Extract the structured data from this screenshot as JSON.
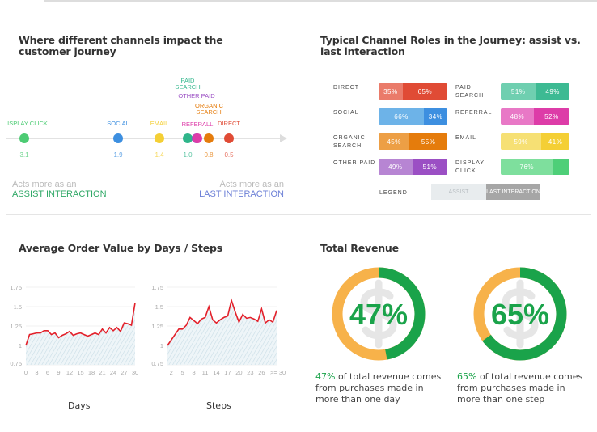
{
  "journey": {
    "title": "Where different channels impact the customer journey",
    "channels": [
      {
        "label": "ISPLAY CLICK",
        "value": "3.1",
        "color": "#4ccb73"
      },
      {
        "label": "SOCIAL",
        "value": "1.9",
        "color": "#3d8fe0"
      },
      {
        "label": "EMAIL",
        "value": "1.4",
        "color": "#f4cf35"
      },
      {
        "label": "PAID SEARCH",
        "value": "1.0",
        "color": "#2fb58a"
      },
      {
        "label": "OTHER PAID",
        "value": "",
        "color": "#9b4fc4"
      },
      {
        "label": "REFERALL",
        "value": "",
        "color": "#dd3ca8"
      },
      {
        "label": "ORGANIC SEARCH",
        "value": "0.8",
        "color": "#e57c0c"
      },
      {
        "label": "DIRECT",
        "value": "0.5",
        "color": "#e04b35"
      }
    ],
    "assist_pre": "Acts more as an",
    "assist_main": "ASSIST INTERACTION",
    "last_pre": "Acts more as an",
    "last_main": "LAST INTERACTION",
    "assist_color": "#2fa866",
    "last_color": "#6b7fd6"
  },
  "roles": {
    "title": "Typical Channel Roles in the Journey: assist vs. last interaction",
    "rows": [
      {
        "label": "DIRECT",
        "assist": 35,
        "last": 65,
        "assist_text": "35%",
        "last_text": "65%",
        "c1": "#ea7b6a",
        "c2": "#e04b35"
      },
      {
        "label": "PAID SEARCH",
        "assist": 51,
        "last": 49,
        "assist_text": "51%",
        "last_text": "49%",
        "c1": "#6fcfb0",
        "c2": "#3dba93"
      },
      {
        "label": "SOCIAL",
        "assist": 66,
        "last": 34,
        "assist_text": "66%",
        "last_text": "34%",
        "c1": "#6db3e8",
        "c2": "#3d8fe0"
      },
      {
        "label": "REFERRAL",
        "assist": 48,
        "last": 52,
        "assist_text": "48%",
        "last_text": "52%",
        "c1": "#e878c6",
        "c2": "#dd3ca8"
      },
      {
        "label": "ORGANIC SEARCH",
        "assist": 45,
        "last": 55,
        "assist_text": "45%",
        "last_text": "55%",
        "c1": "#ed9f45",
        "c2": "#e57c0c"
      },
      {
        "label": "EMAIL",
        "assist": 59,
        "last": 41,
        "assist_text": "59%",
        "last_text": "41%",
        "c1": "#f6e074",
        "c2": "#f4cf35"
      },
      {
        "label": "OTHER PAID",
        "assist": 49,
        "last": 51,
        "assist_text": "49%",
        "last_text": "51%",
        "c1": "#b785d3",
        "c2": "#9b4fc4"
      },
      {
        "label": "DISPLAY CLICK",
        "assist": 76,
        "last": 24,
        "assist_text": "76%",
        "last_text": "",
        "c1": "#7edf9d",
        "c2": "#4ecf78"
      }
    ],
    "legend_label": "LEGEND",
    "legend_assist": "ASSIST",
    "legend_last": "LAST INTERACTION"
  },
  "aov": {
    "title": "Average Order Value by Days / Steps"
  },
  "chart_data": [
    {
      "type": "area",
      "xlabel": "Days",
      "ylim": [
        0.75,
        1.75
      ],
      "yticks": [
        "0.75",
        "1",
        "1.25",
        "1.5",
        "1.75"
      ],
      "xticks": [
        "0",
        "3",
        "6",
        "9",
        "12",
        "15",
        "18",
        "21",
        "24",
        "27",
        "30"
      ],
      "x": [
        0,
        1,
        2,
        3,
        4,
        5,
        6,
        7,
        8,
        9,
        10,
        11,
        12,
        13,
        14,
        15,
        16,
        17,
        18,
        19,
        20,
        21,
        22,
        23,
        24,
        25,
        26,
        27,
        28,
        29,
        30
      ],
      "values": [
        1.0,
        1.14,
        1.15,
        1.16,
        1.16,
        1.19,
        1.19,
        1.14,
        1.16,
        1.1,
        1.13,
        1.15,
        1.18,
        1.13,
        1.15,
        1.16,
        1.14,
        1.12,
        1.14,
        1.16,
        1.14,
        1.21,
        1.16,
        1.23,
        1.19,
        1.23,
        1.18,
        1.29,
        1.28,
        1.26,
        1.55
      ],
      "color": "#e3202a"
    },
    {
      "type": "area",
      "xlabel": "Steps",
      "ylim": [
        0.75,
        1.75
      ],
      "yticks": [
        "0.75",
        "1",
        "1.25",
        "1.5",
        "1.75"
      ],
      "xticks": [
        "2",
        "5",
        "8",
        "11",
        "14",
        "17",
        "20",
        "23",
        "26",
        ">= 30"
      ],
      "x": [
        1,
        2,
        3,
        4,
        5,
        6,
        7,
        8,
        9,
        10,
        11,
        12,
        13,
        14,
        15,
        16,
        17,
        18,
        19,
        20,
        21,
        22,
        23,
        24,
        25,
        26,
        27,
        28,
        29,
        30
      ],
      "values": [
        1.0,
        1.07,
        1.14,
        1.21,
        1.21,
        1.26,
        1.36,
        1.32,
        1.28,
        1.34,
        1.36,
        1.5,
        1.33,
        1.29,
        1.33,
        1.36,
        1.38,
        1.58,
        1.43,
        1.3,
        1.4,
        1.35,
        1.36,
        1.34,
        1.31,
        1.47,
        1.29,
        1.33,
        1.3,
        1.45
      ],
      "color": "#e3202a"
    },
    {
      "type": "pie",
      "title": "Total Revenue",
      "values": [
        47,
        53
      ],
      "center_text": "47%",
      "caption_pct": "47%",
      "caption": " of total revenue comes from purchases made in more than one day",
      "colors": [
        "#1aa34a",
        "#f7b24a"
      ]
    },
    {
      "type": "pie",
      "values": [
        65,
        35
      ],
      "center_text": "65%",
      "caption_pct": "65%",
      "caption": " of total revenue comes from purchases made in more than one step",
      "colors": [
        "#1aa34a",
        "#f7b24a"
      ]
    }
  ]
}
